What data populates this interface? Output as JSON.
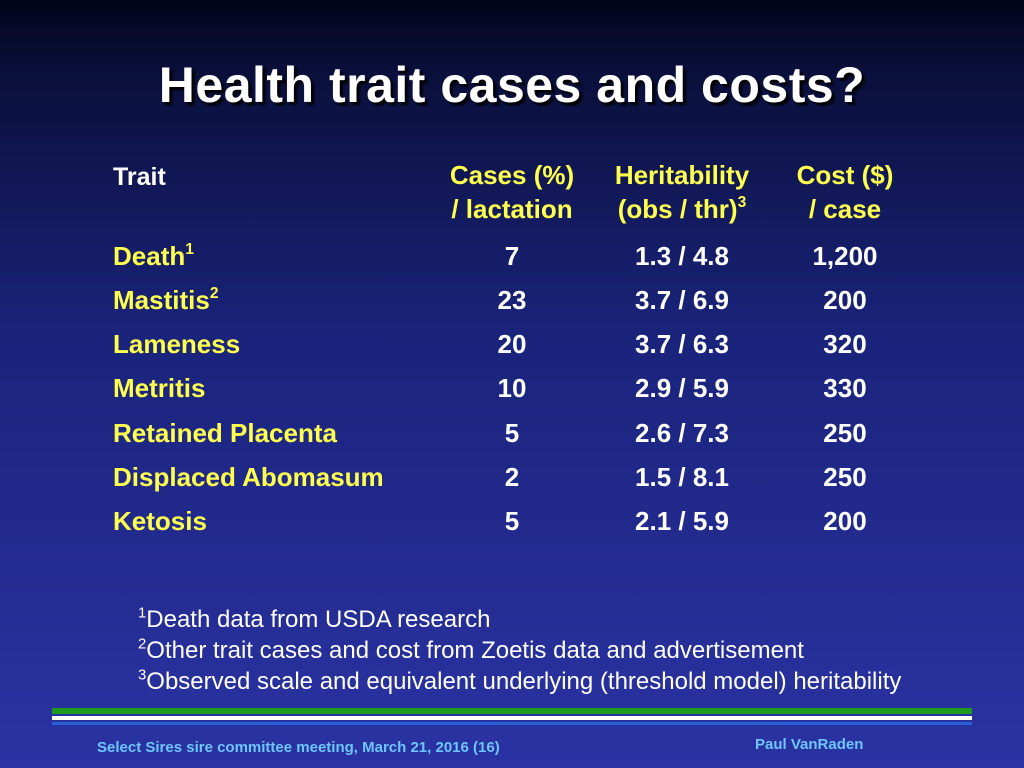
{
  "slide": {
    "title": "Health trait cases and costs?"
  },
  "table": {
    "headers": {
      "trait": "Trait",
      "cases_line1": "Cases (%)",
      "cases_line2": "/ lactation",
      "heritability_line1": "Heritability",
      "heritability_line2": "(obs / thr)",
      "heritability_sup": "3",
      "cost_line1": "Cost ($)",
      "cost_line2": "/ case"
    },
    "rows": [
      {
        "trait": "Death",
        "sup": "1",
        "cases": "7",
        "heritability": "1.3 / 4.8",
        "cost": "1,200"
      },
      {
        "trait": "Mastitis",
        "sup": "2",
        "cases": "23",
        "heritability": "3.7 / 6.9",
        "cost": "200"
      },
      {
        "trait": "Lameness",
        "sup": "",
        "cases": "20",
        "heritability": "3.7 / 6.3",
        "cost": "320"
      },
      {
        "trait": "Metritis",
        "sup": "",
        "cases": "10",
        "heritability": "2.9 / 5.9",
        "cost": "330"
      },
      {
        "trait": "Retained Placenta",
        "sup": "",
        "cases": "5",
        "heritability": "2.6 / 7.3",
        "cost": "250"
      },
      {
        "trait": "Displaced Abomasum",
        "sup": "",
        "cases": "2",
        "heritability": "1.5 / 8.1",
        "cost": "250"
      },
      {
        "trait": "Ketosis",
        "sup": "",
        "cases": "5",
        "heritability": "2.1 / 5.9",
        "cost": "200"
      }
    ]
  },
  "footnotes": [
    {
      "marker": "1",
      "text": "Death data from USDA research"
    },
    {
      "marker": "2",
      "text": "Other trait cases and cost from Zoetis data and advertisement"
    },
    {
      "marker": "3",
      "text": "Observed scale and equivalent underlying (threshold model) heritability"
    }
  ],
  "footer": {
    "left": "Select Sires sire committee meeting, March 21, 2016 (16)",
    "right": "Paul VanRaden"
  },
  "colors": {
    "trait_text": "#ffff4d",
    "footer_text": "#6ec6ff",
    "stripe_green": "#1d9b1d",
    "stripe_blue": "#2a62d6"
  }
}
